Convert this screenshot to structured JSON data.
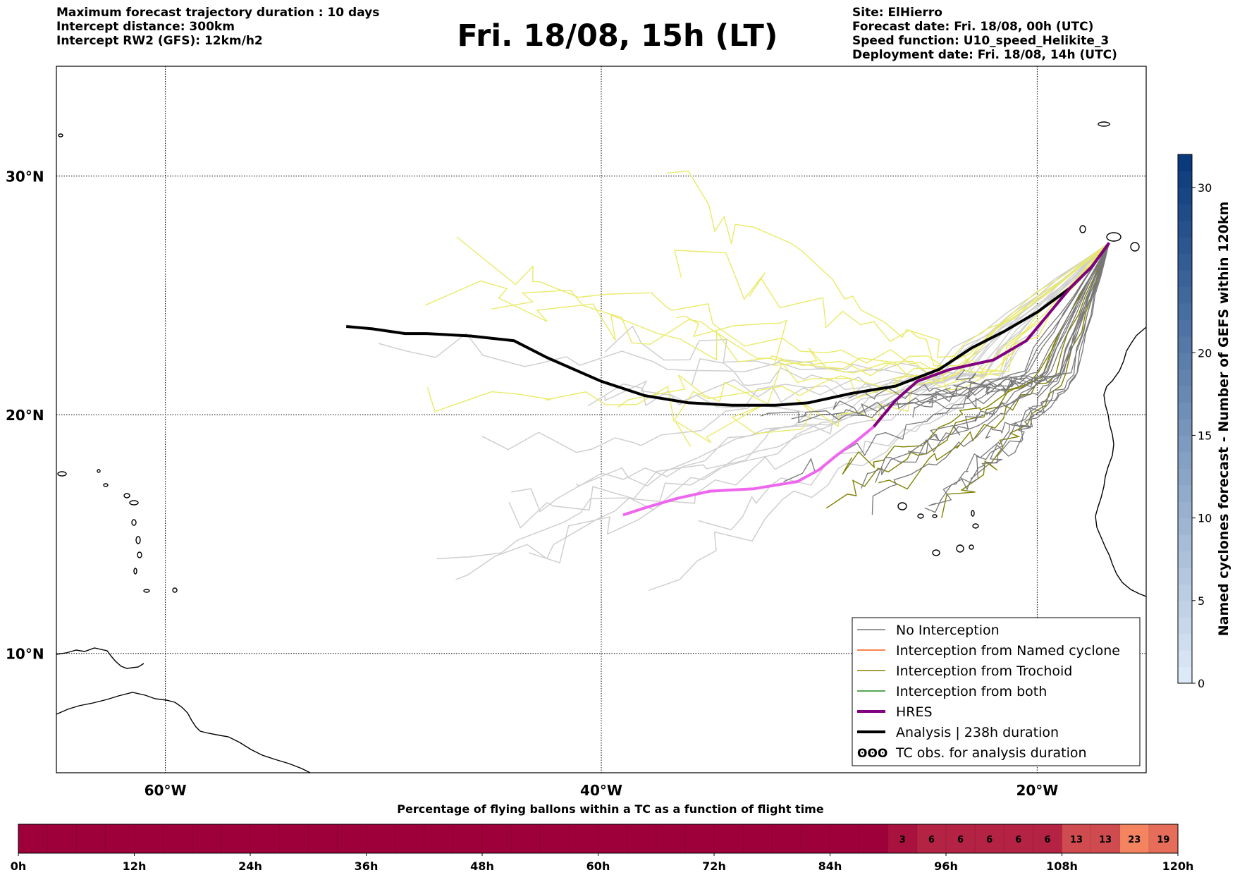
{
  "header_left": [
    "Maximum forecast trajectory duration : 10 days",
    "Intercept distance: 300km",
    "Intercept RW2 (GFS):  12km/h2"
  ],
  "title": "Fri. 18/08, 15h (LT)",
  "header_right": [
    "Site: ElHierro",
    "Forecast date: Fri. 18/08, 00h (UTC)",
    "Speed function: U10_speed_Helikite_3",
    "Deployment date: Fri. 18/08, 14h (UTC)"
  ],
  "chart_data": [
    {
      "type": "map",
      "lon_range": [
        -65,
        15
      ],
      "lat_range": [
        5,
        35
      ],
      "x_ticks": [
        "60°W",
        "40°W",
        "20°W"
      ],
      "y_ticks": [
        "30°N",
        "20°N",
        "10°N"
      ],
      "grid": true,
      "legend_position": "bottom-right",
      "legend": [
        {
          "label": "No Interception",
          "color": "#777777",
          "style": "thin"
        },
        {
          "label": "Interception from Named cyclone",
          "color": "#ff5a14",
          "style": "thin"
        },
        {
          "label": "Interception from Trochoid",
          "color": "#808000",
          "style": "thin"
        },
        {
          "label": "Interception from both",
          "color": "#1a8a1a",
          "style": "thin"
        },
        {
          "label": "HRES",
          "color": "#800080",
          "style": "thick"
        },
        {
          "label": "Analysis | 238h duration",
          "color": "#000000",
          "style": "thick"
        },
        {
          "label": "TC obs. for analysis duration",
          "color": "#000000",
          "style": "symbol"
        }
      ],
      "series": [
        {
          "name": "Analysis | 238h duration",
          "color": "#000000",
          "points": [
            [
              -16.7,
              27.2
            ],
            [
              -17.5,
              26.2
            ],
            [
              -18.5,
              25.3
            ],
            [
              -20,
              24.3
            ],
            [
              -21.5,
              23.5
            ],
            [
              -23,
              22.8
            ],
            [
              -24.5,
              21.9
            ],
            [
              -26.5,
              21.2
            ],
            [
              -28.5,
              20.9
            ],
            [
              -30.5,
              20.5
            ],
            [
              -32,
              20.4
            ],
            [
              -34,
              20.4
            ],
            [
              -36,
              20.5
            ],
            [
              -38,
              20.8
            ],
            [
              -40,
              21.4
            ],
            [
              -41,
              21.8
            ],
            [
              -42.5,
              22.4
            ],
            [
              -44,
              23.1
            ],
            [
              -46,
              23.3
            ],
            [
              -48,
              23.4
            ],
            [
              -49,
              23.4
            ],
            [
              -50.5,
              23.6
            ],
            [
              -51.7,
              23.7
            ]
          ]
        },
        {
          "name": "HRES",
          "color": "#800080",
          "points": [
            [
              -16.7,
              27.2
            ],
            [
              -17.5,
              26.2
            ],
            [
              -18.5,
              25.3
            ],
            [
              -19.5,
              24.2
            ],
            [
              -20.5,
              23.1
            ],
            [
              -22,
              22.3
            ],
            [
              -24,
              21.9
            ],
            [
              -25.5,
              21.4
            ],
            [
              -26.5,
              20.6
            ],
            [
              -27.5,
              19.5
            ]
          ]
        },
        {
          "name": "HRES (intercepted)",
          "color": "#ee66ee",
          "points": [
            [
              -27.5,
              19.5
            ],
            [
              -28.3,
              18.9
            ],
            [
              -29.2,
              18.3
            ],
            [
              -30,
              17.7
            ],
            [
              -31,
              17.2
            ],
            [
              -33,
              16.9
            ],
            [
              -35,
              16.8
            ],
            [
              -36.5,
              16.5
            ],
            [
              -38,
              16.1
            ],
            [
              -39,
              15.8
            ]
          ]
        }
      ],
      "ensemble_colors": {
        "gefs_gray": "#777777",
        "gefs_light": "#cfcfcf",
        "trochoid_yellow": "#eaea6a",
        "trochoid": "#808000"
      }
    },
    {
      "type": "colorbar",
      "label": "Named cyclones forecast - Number of GEFS within 120km",
      "ticks": [
        "0",
        "5",
        "10",
        "15",
        "20",
        "30"
      ],
      "range": [
        0,
        32
      ],
      "colors": [
        "#dce9f6",
        "#0b3a7c"
      ]
    },
    {
      "type": "heatmap",
      "title": "Percentage of flying ballons within a TC as a function of flight time",
      "x_ticks": [
        "0h",
        "12h",
        "24h",
        "36h",
        "48h",
        "60h",
        "72h",
        "84h",
        "96h",
        "108h",
        "120h"
      ],
      "bins_hours": 3,
      "values": [
        0,
        0,
        0,
        0,
        0,
        0,
        0,
        0,
        0,
        0,
        0,
        0,
        0,
        0,
        0,
        0,
        0,
        0,
        0,
        0,
        0,
        0,
        0,
        0,
        0,
        0,
        0,
        0,
        0,
        0,
        3,
        6,
        6,
        6,
        6,
        6,
        13,
        13,
        23,
        19
      ],
      "colors": {
        "low": "#9e003a",
        "high": "#f4845f"
      }
    }
  ]
}
